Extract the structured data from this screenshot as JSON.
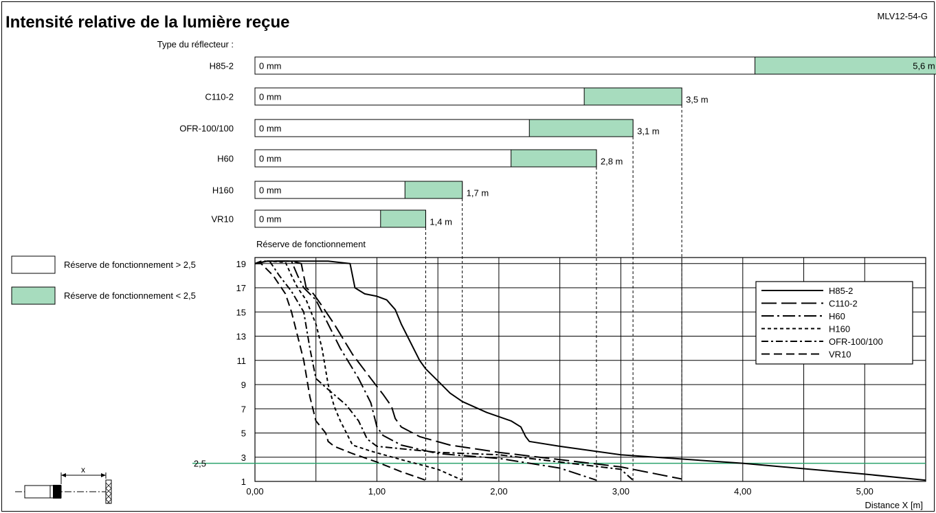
{
  "title": "Intensité relative de la lumière reçue",
  "product_code": "MLV12-54-G",
  "reflector_type_label": "Type du réflecteur :",
  "reserve_label": "Réserve de fonctionnement",
  "legend_boxes": [
    {
      "label": "Réserve de fonctionnement > 2,5",
      "color": "#ffffff"
    },
    {
      "label": "Réserve de fonctionnement < 2,5",
      "color": "#a7dcbe"
    }
  ],
  "colors": {
    "reserve_low": "#a7dcbe",
    "threshold_line": "#2aa36b",
    "ink": "#000000"
  },
  "chart_data": [
    {
      "type": "bar",
      "subtype": "range",
      "categories": [
        "H85-2",
        "C110-2",
        "OFR-100/100",
        "H60",
        "H160",
        "VR10"
      ],
      "start_labels": [
        "0 mm",
        "0 mm",
        "0 mm",
        "0 mm",
        "0 mm",
        "0 mm"
      ],
      "max_range_m": [
        5.6,
        3.5,
        3.1,
        2.8,
        1.7,
        1.4
      ],
      "max_range_labels": [
        "5,6 m",
        "3,5 m",
        "3,1 m",
        "2,8 m",
        "1,7 m",
        "1,4 m"
      ],
      "reserve_25_limit_m": [
        4.1,
        2.7,
        2.25,
        2.1,
        1.23,
        1.03
      ]
    },
    {
      "type": "line",
      "xlabel": "Distance X [m]",
      "ylabel": "",
      "xlim": [
        0,
        5.5
      ],
      "ylim": [
        1,
        19.5
      ],
      "x_ticks": [
        0,
        1,
        2,
        3,
        4,
        5
      ],
      "x_tick_labels": [
        "0,00",
        "1,00",
        "2,00",
        "3,00",
        "4,00",
        "5,00"
      ],
      "y_ticks": [
        1,
        3,
        5,
        7,
        9,
        11,
        13,
        15,
        17,
        19
      ],
      "y_tick_labels": [
        "1",
        "3",
        "5",
        "7",
        "9",
        "11",
        "13",
        "15",
        "17",
        "19"
      ],
      "threshold": {
        "y": 2.5,
        "label": "2,5"
      },
      "grid": true,
      "legend_position": "top-right",
      "series": [
        {
          "name": "H85-2",
          "dash": "solid",
          "points": [
            [
              0,
              19
            ],
            [
              0.1,
              19.2
            ],
            [
              0.3,
              19.2
            ],
            [
              0.6,
              19.2
            ],
            [
              0.78,
              19
            ],
            [
              0.82,
              17
            ],
            [
              0.9,
              16.5
            ],
            [
              1.0,
              16.3
            ],
            [
              1.08,
              16
            ],
            [
              1.15,
              15.2
            ],
            [
              1.2,
              14
            ],
            [
              1.25,
              13
            ],
            [
              1.3,
              12
            ],
            [
              1.35,
              11
            ],
            [
              1.4,
              10.3
            ],
            [
              1.5,
              9.3
            ],
            [
              1.6,
              8.3
            ],
            [
              1.7,
              7.6
            ],
            [
              1.9,
              6.7
            ],
            [
              2.1,
              6
            ],
            [
              2.18,
              5.5
            ],
            [
              2.22,
              4.7
            ],
            [
              2.25,
              4.3
            ],
            [
              2.5,
              3.9
            ],
            [
              3.0,
              3.2
            ],
            [
              4.0,
              2.5
            ],
            [
              5.0,
              1.6
            ],
            [
              5.5,
              1.1
            ]
          ]
        },
        {
          "name": "C110-2",
          "dash": "long",
          "points": [
            [
              0,
              19
            ],
            [
              0.1,
              19.2
            ],
            [
              0.3,
              19.2
            ],
            [
              0.38,
              19
            ],
            [
              0.42,
              17
            ],
            [
              0.48,
              16.5
            ],
            [
              0.55,
              15.5
            ],
            [
              0.65,
              14
            ],
            [
              0.8,
              11.5
            ],
            [
              0.95,
              9.5
            ],
            [
              1.05,
              8.2
            ],
            [
              1.12,
              7.2
            ],
            [
              1.15,
              6.2
            ],
            [
              1.2,
              5.5
            ],
            [
              1.35,
              4.7
            ],
            [
              1.6,
              4
            ],
            [
              2.0,
              3.4
            ],
            [
              2.5,
              2.8
            ],
            [
              3.0,
              2.2
            ],
            [
              3.5,
              1.2
            ]
          ]
        },
        {
          "name": "H60",
          "dash": "longdot",
          "points": [
            [
              0,
              19
            ],
            [
              0.1,
              19.2
            ],
            [
              0.3,
              19.2
            ],
            [
              0.35,
              18
            ],
            [
              0.4,
              17
            ],
            [
              0.5,
              16
            ],
            [
              0.6,
              14
            ],
            [
              0.7,
              12
            ],
            [
              0.85,
              9.5
            ],
            [
              0.95,
              7.5
            ],
            [
              1.0,
              5.5
            ],
            [
              1.05,
              4.8
            ],
            [
              1.2,
              4
            ],
            [
              1.5,
              3.3
            ],
            [
              2.0,
              2.9
            ],
            [
              2.5,
              2.1
            ],
            [
              2.8,
              1.1
            ]
          ]
        },
        {
          "name": "H160",
          "dash": "short",
          "points": [
            [
              0,
              19
            ],
            [
              0.1,
              19.2
            ],
            [
              0.25,
              19.1
            ],
            [
              0.3,
              18
            ],
            [
              0.35,
              17
            ],
            [
              0.42,
              16
            ],
            [
              0.5,
              14
            ],
            [
              0.55,
              12
            ],
            [
              0.6,
              9
            ],
            [
              0.65,
              7.2
            ],
            [
              0.7,
              6
            ],
            [
              0.75,
              5
            ],
            [
              0.8,
              4
            ],
            [
              0.95,
              3.5
            ],
            [
              1.2,
              2.8
            ],
            [
              1.5,
              2
            ],
            [
              1.7,
              1.1
            ]
          ]
        },
        {
          "name": "OFR-100/100",
          "dash": "dashdot",
          "points": [
            [
              0,
              19
            ],
            [
              0.05,
              19.2
            ],
            [
              0.12,
              19.2
            ],
            [
              0.2,
              18
            ],
            [
              0.3,
              16.7
            ],
            [
              0.4,
              15
            ],
            [
              0.45,
              12
            ],
            [
              0.5,
              9.5
            ],
            [
              0.6,
              8.6
            ],
            [
              0.75,
              7.3
            ],
            [
              0.85,
              6
            ],
            [
              0.92,
              4.5
            ],
            [
              1.0,
              3.9
            ],
            [
              1.5,
              3.4
            ],
            [
              2.0,
              3.2
            ],
            [
              2.5,
              2.6
            ],
            [
              3.0,
              2.0
            ],
            [
              3.1,
              1.1
            ]
          ]
        },
        {
          "name": "VR10",
          "dash": "medium",
          "points": [
            [
              0,
              19
            ],
            [
              0.05,
              19
            ],
            [
              0.15,
              18
            ],
            [
              0.25,
              16.5
            ],
            [
              0.3,
              15
            ],
            [
              0.35,
              13
            ],
            [
              0.4,
              11
            ],
            [
              0.45,
              8
            ],
            [
              0.5,
              6
            ],
            [
              0.58,
              5
            ],
            [
              0.6,
              4.3
            ],
            [
              0.65,
              3.9
            ],
            [
              0.8,
              3.3
            ],
            [
              1.0,
              2.6
            ],
            [
              1.2,
              1.8
            ],
            [
              1.4,
              1.1
            ]
          ]
        }
      ]
    }
  ]
}
